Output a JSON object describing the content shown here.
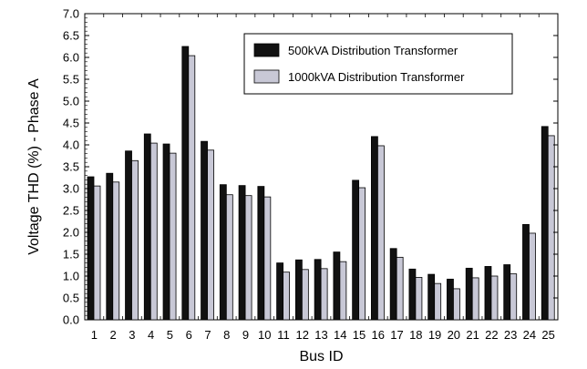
{
  "chart_data": {
    "type": "bar",
    "xlabel": "Bus ID",
    "ylabel": "Voltage THD (%) - Phase A",
    "ylim": [
      0,
      7
    ],
    "ytick_step": 0.5,
    "yticks": [
      "0.0",
      "0.5",
      "1.0",
      "1.5",
      "2.0",
      "2.5",
      "3.0",
      "3.5",
      "4.0",
      "4.5",
      "5.0",
      "5.5",
      "6.0",
      "6.5",
      "7.0"
    ],
    "grid": false,
    "legend_position": "top-right",
    "categories": [
      "1",
      "2",
      "3",
      "4",
      "5",
      "6",
      "7",
      "8",
      "9",
      "10",
      "11",
      "12",
      "13",
      "14",
      "15",
      "16",
      "17",
      "18",
      "19",
      "20",
      "21",
      "22",
      "23",
      "24",
      "25"
    ],
    "series": [
      {
        "name": "500kVA Distribution Transformer",
        "color": "#111111",
        "values": [
          3.27,
          3.35,
          3.86,
          4.25,
          4.02,
          6.25,
          4.08,
          3.09,
          3.07,
          3.05,
          1.3,
          1.37,
          1.38,
          1.55,
          3.19,
          4.19,
          1.63,
          1.16,
          1.04,
          0.93,
          1.18,
          1.22,
          1.26,
          2.18,
          4.42
        ]
      },
      {
        "name": "1000kVA Distribution Transformer",
        "color": "#c8c8d6",
        "values": [
          3.06,
          3.15,
          3.64,
          4.04,
          3.81,
          6.04,
          3.88,
          2.86,
          2.84,
          2.81,
          1.09,
          1.15,
          1.17,
          1.33,
          3.02,
          3.98,
          1.43,
          0.97,
          0.83,
          0.71,
          0.96,
          1.0,
          1.05,
          1.98,
          4.21
        ]
      }
    ]
  }
}
